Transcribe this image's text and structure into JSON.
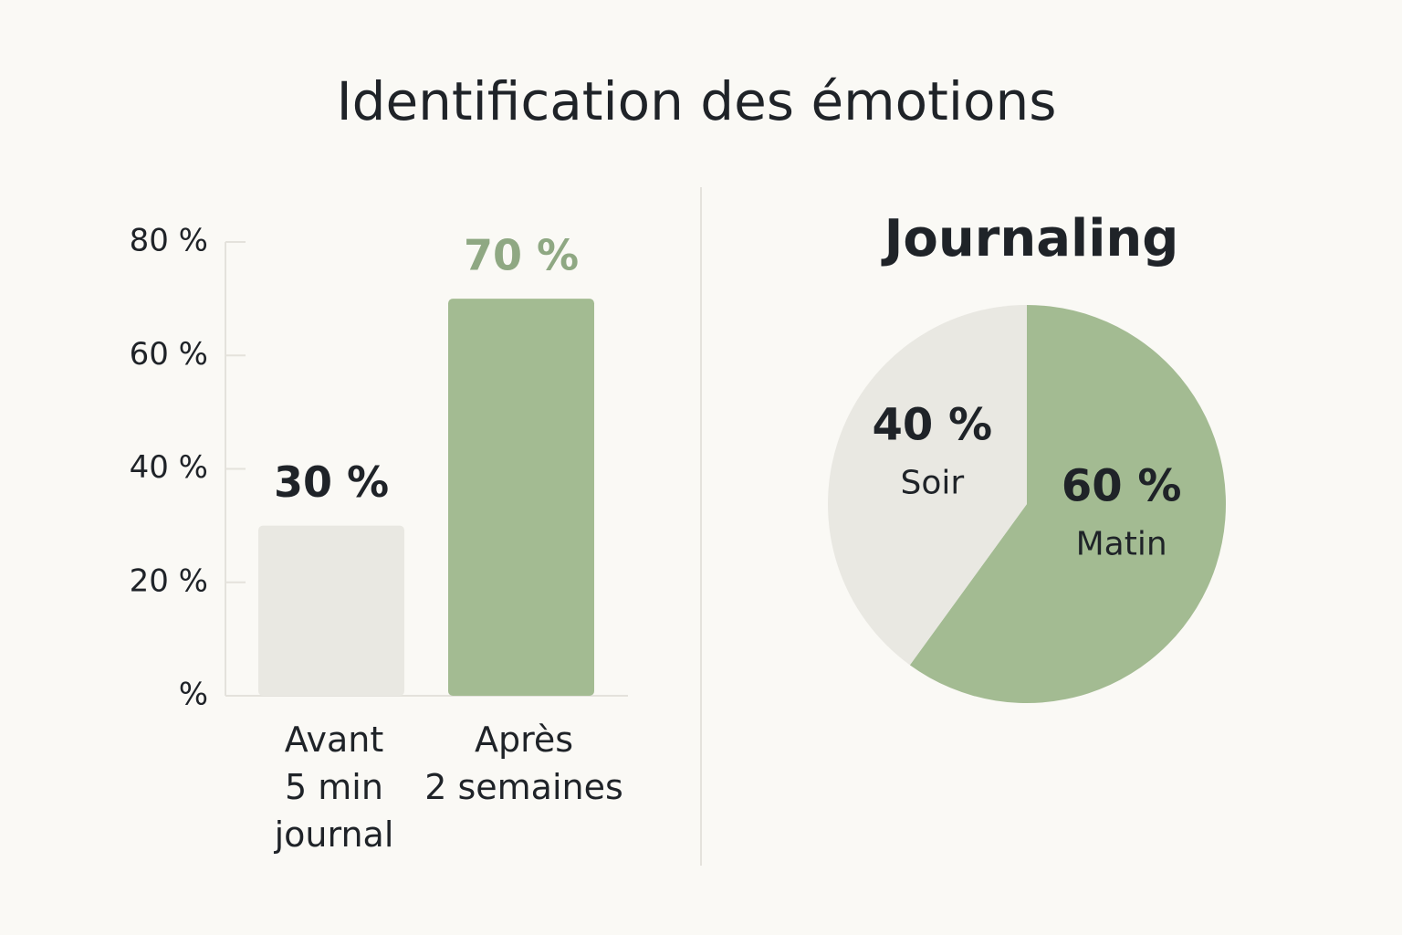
{
  "title": "Identification des émotions",
  "chart_data": [
    {
      "type": "bar",
      "categories": [
        [
          "Avant",
          "5 min",
          "journal"
        ],
        [
          "Après",
          "2 semaines"
        ]
      ],
      "values": [
        30,
        70
      ],
      "value_labels": [
        "30 %",
        "70 %"
      ],
      "colors": [
        "#e9e8e2",
        "#a3bb92"
      ],
      "value_label_colors": [
        "#1f2328",
        "#8fa883"
      ],
      "ylim": [
        0,
        80
      ],
      "yticks": [
        {
          "value": 0,
          "label": "%"
        },
        {
          "value": 20,
          "label": "20 %"
        },
        {
          "value": 40,
          "label": "40 %"
        },
        {
          "value": 60,
          "label": "60 %"
        },
        {
          "value": 80,
          "label": "80 %"
        }
      ]
    },
    {
      "type": "pie",
      "title": "Journaling",
      "categories": [
        "Matin",
        "Soir"
      ],
      "values": [
        60,
        40
      ],
      "value_labels": [
        "60 %",
        "40 %"
      ],
      "colors": [
        "#a3bb92",
        "#e9e8e2"
      ]
    }
  ]
}
